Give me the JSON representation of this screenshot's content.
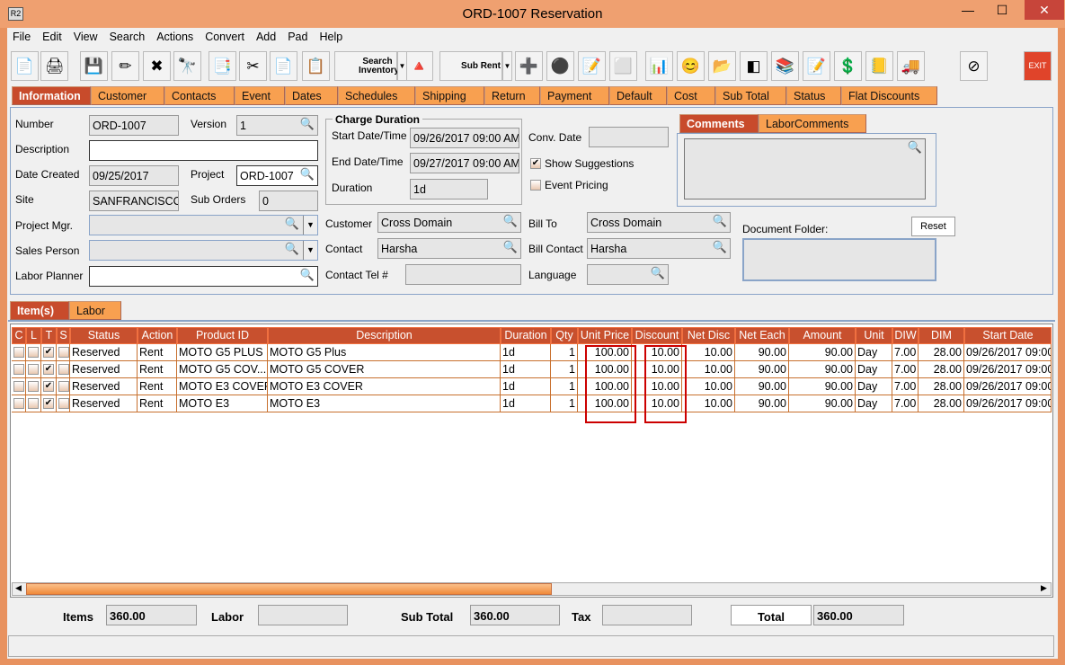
{
  "window": {
    "title": "ORD-1007 Reservation",
    "icon": "R2",
    "min": "—",
    "max": "☐",
    "close": "✕"
  },
  "menu": [
    "File",
    "Edit",
    "View",
    "Search",
    "Actions",
    "Convert",
    "Add",
    "Pad",
    "Help"
  ],
  "toolbar": {
    "search_inventory": "Search Inventory",
    "sub_rent": "Sub Rent",
    "exit": "EXIT"
  },
  "tabs": [
    "Information",
    "Customer",
    "Contacts",
    "Event",
    "Dates",
    "Schedules",
    "Shipping",
    "Return",
    "Payment",
    "Default",
    "Cost",
    "Sub Total",
    "Status",
    "Flat Discounts"
  ],
  "info": {
    "number_label": "Number",
    "number": "ORD-1007",
    "version_label": "Version",
    "version": "1",
    "description_label": "Description",
    "description": "",
    "date_created_label": "Date Created",
    "date_created": "09/25/2017",
    "project_label": "Project",
    "project": "ORD-1007",
    "site_label": "Site",
    "site": "SANFRANCISCO",
    "sub_orders_label": "Sub Orders",
    "sub_orders": "0",
    "project_mgr_label": "Project Mgr.",
    "project_mgr": "",
    "sales_person_label": "Sales Person",
    "sales_person": "",
    "labor_planner_label": "Labor Planner",
    "labor_planner": "",
    "charge_duration": "Charge Duration",
    "start_label": "Start Date/Time",
    "start": "09/26/2017 09:00 AM",
    "end_label": "End Date/Time",
    "end": "09/27/2017 09:00 AM",
    "duration_label": "Duration",
    "duration": "1d",
    "conv_date_label": "Conv. Date",
    "conv_date": "",
    "show_suggestions": "Show Suggestions",
    "show_suggestions_checked": true,
    "event_pricing": "Event Pricing",
    "event_pricing_checked": false,
    "customer_label": "Customer",
    "customer": "Cross Domain",
    "contact_label": "Contact",
    "contact": "Harsha",
    "contact_tel_label": "Contact Tel #",
    "contact_tel": "",
    "bill_to_label": "Bill To",
    "bill_to": "Cross Domain",
    "bill_contact_label": "Bill Contact",
    "bill_contact": "Harsha",
    "language_label": "Language",
    "language": "",
    "comments_tab": "Comments",
    "labor_comments_tab": "LaborComments",
    "document_folder_label": "Document Folder:",
    "reset": "Reset"
  },
  "item_tabs": [
    "Item(s)",
    "Labor"
  ],
  "table": {
    "columns": [
      "C",
      "L",
      "T",
      "S",
      "Status",
      "Action",
      "Product ID",
      "Description",
      "Duration",
      "Qty",
      "Unit Price",
      "Discount",
      "Net Disc",
      "Net Each",
      "Amount",
      "Unit",
      "DIW",
      "DIM",
      "Start Date"
    ],
    "rows": [
      {
        "c": false,
        "l": false,
        "t": true,
        "s": false,
        "status": "Reserved",
        "action": "Rent",
        "product_id": "MOTO G5 PLUS",
        "description": "MOTO G5 Plus",
        "duration": "1d",
        "qty": "1",
        "unit_price": "100.00",
        "discount": "10.00",
        "net_disc": "10.00",
        "net_each": "90.00",
        "amount": "90.00",
        "unit": "Day",
        "diw": "7.00",
        "dim": "28.00",
        "start_date": "09/26/2017 09:00"
      },
      {
        "c": false,
        "l": false,
        "t": true,
        "s": false,
        "status": "Reserved",
        "action": "Rent",
        "product_id": "MOTO G5 COV...",
        "description": "MOTO G5 COVER",
        "duration": "1d",
        "qty": "1",
        "unit_price": "100.00",
        "discount": "10.00",
        "net_disc": "10.00",
        "net_each": "90.00",
        "amount": "90.00",
        "unit": "Day",
        "diw": "7.00",
        "dim": "28.00",
        "start_date": "09/26/2017 09:00"
      },
      {
        "c": false,
        "l": false,
        "t": true,
        "s": false,
        "status": "Reserved",
        "action": "Rent",
        "product_id": "MOTO E3 COVER",
        "description": "MOTO E3 COVER",
        "duration": "1d",
        "qty": "1",
        "unit_price": "100.00",
        "discount": "10.00",
        "net_disc": "10.00",
        "net_each": "90.00",
        "amount": "90.00",
        "unit": "Day",
        "diw": "7.00",
        "dim": "28.00",
        "start_date": "09/26/2017 09:00"
      },
      {
        "c": false,
        "l": false,
        "t": true,
        "s": false,
        "status": "Reserved",
        "action": "Rent",
        "product_id": "MOTO E3",
        "description": "MOTO E3",
        "duration": "1d",
        "qty": "1",
        "unit_price": "100.00",
        "discount": "10.00",
        "net_disc": "10.00",
        "net_each": "90.00",
        "amount": "90.00",
        "unit": "Day",
        "diw": "7.00",
        "dim": "28.00",
        "start_date": "09/26/2017 09:00"
      }
    ]
  },
  "totals": {
    "items_label": "Items",
    "items": "360.00",
    "labor_label": "Labor",
    "labor": "",
    "sub_total_label": "Sub Total",
    "sub_total": "360.00",
    "tax_label": "Tax",
    "tax": "",
    "total_label": "Total",
    "total": "360.00"
  },
  "colors": {
    "accent": "#C84B2B",
    "tab": "#F8A050",
    "highlight": "#CC0000"
  }
}
